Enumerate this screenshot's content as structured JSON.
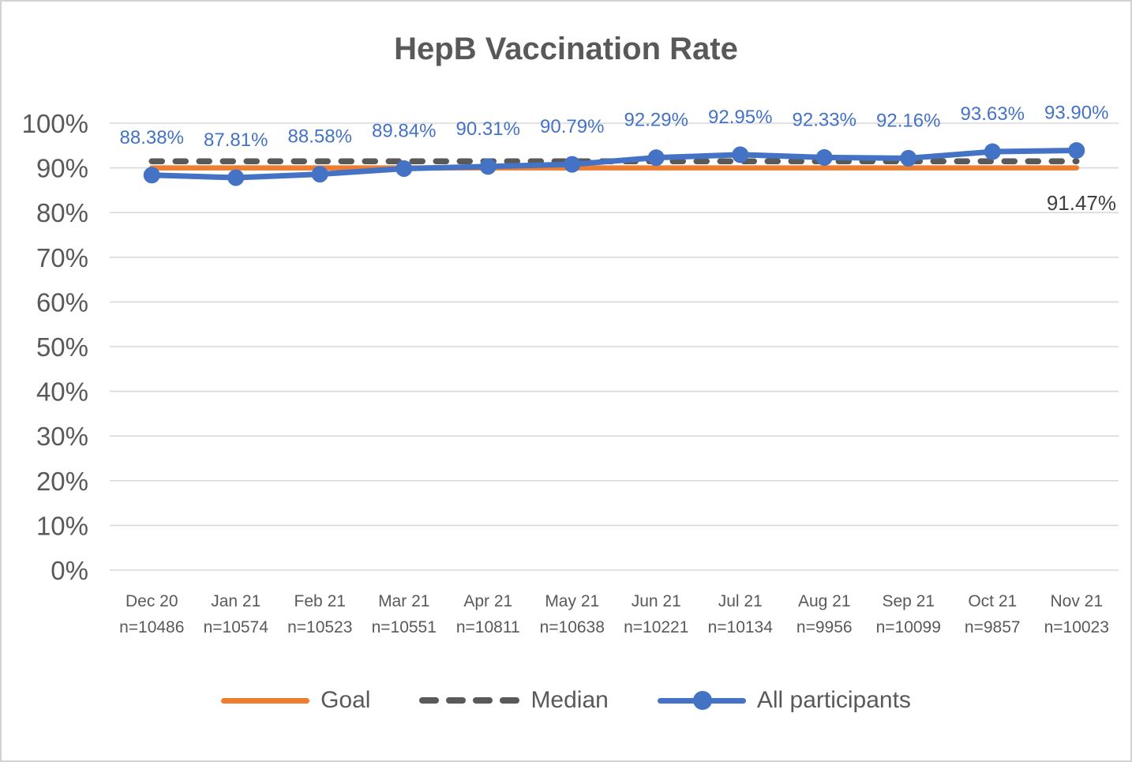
{
  "chart_data": {
    "type": "line",
    "title": "HepB Vaccination Rate",
    "categories": [
      "Dec 20",
      "Jan 21",
      "Feb 21",
      "Mar 21",
      "Apr 21",
      "May 21",
      "Jun 21",
      "Jul 21",
      "Aug 21",
      "Sep 21",
      "Oct 21",
      "Nov 21"
    ],
    "sample_sizes": [
      "n=10486",
      "n=10574",
      "n=10523",
      "n=10551",
      "n=10811",
      "n=10638",
      "n=10221",
      "n=10134",
      "n=9956",
      "n=10099",
      "n=9857",
      "n=10023"
    ],
    "series": [
      {
        "name": "Goal",
        "color": "#ED7D31",
        "style": "solid",
        "values": [
          90,
          90,
          90,
          90,
          90,
          90,
          90,
          90,
          90,
          90,
          90,
          90
        ]
      },
      {
        "name": "Median",
        "color": "#595959",
        "style": "dashed",
        "values": [
          91.47,
          91.47,
          91.47,
          91.47,
          91.47,
          91.47,
          91.47,
          91.47,
          91.47,
          91.47,
          91.47,
          91.47
        ],
        "last_value_label": "91.47%"
      },
      {
        "name": "All participants",
        "color": "#4472C4",
        "style": "line-markers",
        "values": [
          88.38,
          87.81,
          88.58,
          89.84,
          90.31,
          90.79,
          92.29,
          92.95,
          92.33,
          92.16,
          93.63,
          93.9
        ],
        "point_labels": [
          "88.38%",
          "87.81%",
          "88.58%",
          "89.84%",
          "90.31%",
          "90.79%",
          "92.29%",
          "92.95%",
          "92.33%",
          "92.16%",
          "93.63%",
          "93.90%"
        ]
      }
    ],
    "ylim": [
      0,
      100
    ],
    "ytick_step": 10,
    "ytick_labels": [
      "0%",
      "10%",
      "20%",
      "30%",
      "40%",
      "50%",
      "60%",
      "70%",
      "80%",
      "90%",
      "100%"
    ],
    "grid": true,
    "legend_position": "bottom",
    "annotation": {
      "text": "91.47%",
      "series": "Median",
      "color": "#404040"
    },
    "colors": {
      "grid": "#D9D9D9",
      "axis_text": "#595959",
      "title_text": "#595959",
      "data_label_text": "#4472C4",
      "frame_border": "#D2D2D2"
    }
  }
}
